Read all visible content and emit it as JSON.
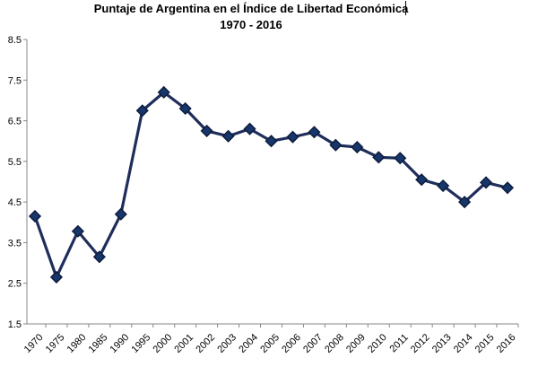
{
  "chart_data": {
    "type": "line",
    "title": "Puntaje de Argentina en el Índice de Libertad Económica",
    "subtitle": "1970 - 2016",
    "xlabel": "",
    "ylabel": "",
    "categories": [
      "1970",
      "1975",
      "1980",
      "1985",
      "1990",
      "1995",
      "2000",
      "2001",
      "2002",
      "2003",
      "2004",
      "2005",
      "2006",
      "2007",
      "2008",
      "2009",
      "2010",
      "2011",
      "2012",
      "2013",
      "2014",
      "2015",
      "2016"
    ],
    "series": [
      {
        "values": [
          4.15,
          2.65,
          3.78,
          3.15,
          4.2,
          6.75,
          7.2,
          6.8,
          6.25,
          6.12,
          6.3,
          6.0,
          6.1,
          6.22,
          5.9,
          5.85,
          5.6,
          5.58,
          5.05,
          4.9,
          4.5,
          4.98,
          4.85
        ],
        "color": "#1f2d5a"
      }
    ],
    "ylim": [
      1.5,
      8.5
    ],
    "yticks": [
      "8.5",
      "7.5",
      "6.5",
      "5.5",
      "4.5",
      "3.5",
      "2.5",
      "1.5"
    ],
    "grid": false,
    "legend": "none"
  }
}
